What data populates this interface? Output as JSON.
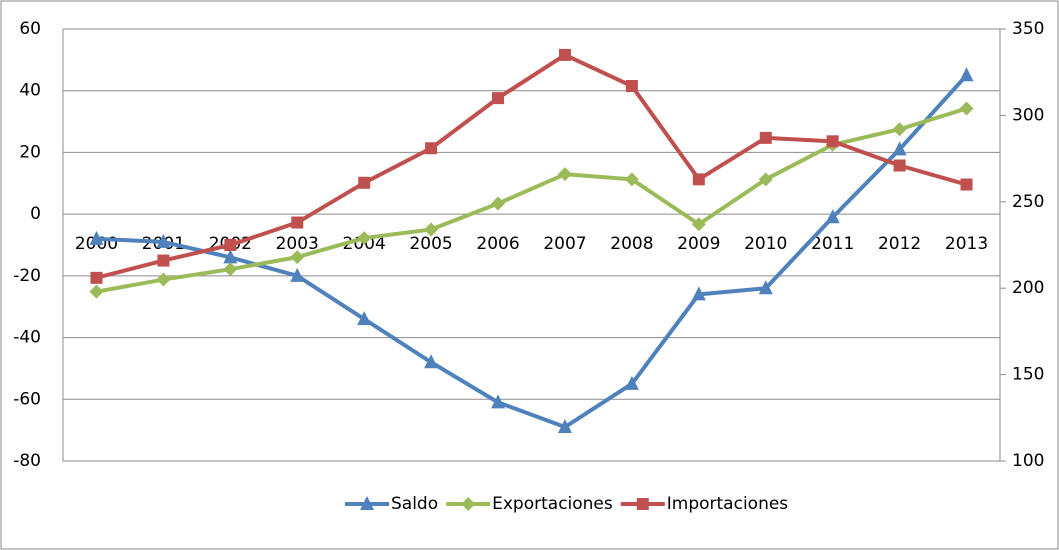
{
  "chart_data": {
    "type": "line",
    "categories": [
      "2000",
      "2001",
      "2002",
      "2003",
      "2004",
      "2005",
      "2006",
      "2007",
      "2008",
      "2009",
      "2010",
      "2011",
      "2012",
      "2013"
    ],
    "series": [
      {
        "name": "Saldo",
        "color": "#4f81bd",
        "marker": "triangle",
        "values": [
          -8,
          -9,
          -14,
          -20,
          -34,
          -48,
          -61,
          -69,
          -55,
          -26,
          -24,
          -1,
          21,
          45
        ]
      },
      {
        "name": "Exportaciones",
        "color": "#9bbb59",
        "marker": "diamond",
        "axis": "y2",
        "values": [
          198,
          205,
          211,
          218,
          229,
          234,
          249,
          266,
          263,
          237,
          263,
          283,
          292,
          304
        ]
      },
      {
        "name": "Importaciones",
        "color": "#c0504d",
        "marker": "square",
        "axis": "y2",
        "values": [
          206,
          216,
          225,
          238,
          261,
          281,
          310,
          335,
          317,
          263,
          287,
          285,
          271,
          260
        ]
      }
    ],
    "ylim": [
      -80,
      60
    ],
    "yticks": [
      -80,
      -60,
      -40,
      -20,
      0,
      20,
      40,
      60
    ],
    "y2lim": [
      100,
      350
    ],
    "y2ticks": [
      100,
      150,
      200,
      250,
      300,
      350
    ],
    "grid": true,
    "legend": "bottom"
  }
}
